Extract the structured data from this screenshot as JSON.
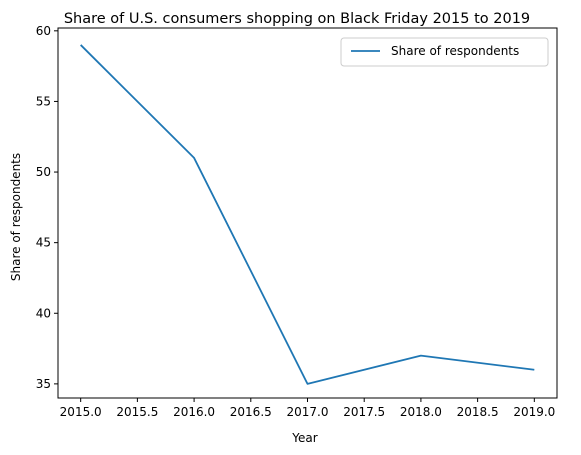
{
  "chart_data": {
    "type": "line",
    "title": "Share of U.S. consumers shopping on Black Friday 2015 to 2019",
    "xlabel": "Year",
    "ylabel": "Share of respondents",
    "x": [
      2015,
      2016,
      2017,
      2018,
      2019
    ],
    "series": [
      {
        "name": "Share of respondents",
        "values": [
          59,
          51,
          35,
          37,
          36
        ],
        "color": "#1f77b4"
      }
    ],
    "xlim": [
      2014.8,
      2019.2
    ],
    "ylim": [
      34.0,
      60.2
    ],
    "xticks": [
      2015.0,
      2015.5,
      2016.0,
      2016.5,
      2017.0,
      2017.5,
      2018.0,
      2018.5,
      2019.0
    ],
    "xtick_labels": [
      "2015.0",
      "2015.5",
      "2016.0",
      "2016.5",
      "2017.0",
      "2017.5",
      "2018.0",
      "2018.5",
      "2019.0"
    ],
    "yticks": [
      35,
      40,
      45,
      50,
      55,
      60
    ],
    "ytick_labels": [
      "35",
      "40",
      "45",
      "50",
      "55",
      "60"
    ],
    "grid": false,
    "legend_position": "top-right"
  }
}
